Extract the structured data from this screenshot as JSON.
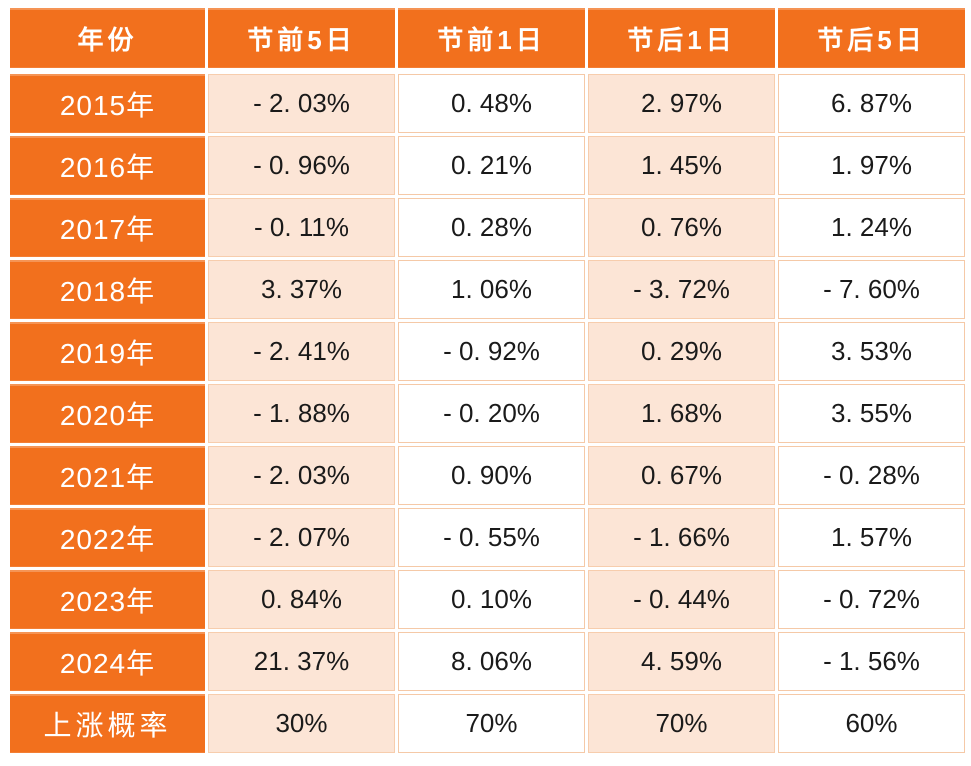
{
  "chart_data": {
    "type": "table",
    "columns": [
      "年份",
      "节前5日",
      "节前1日",
      "节后1日",
      "节后5日"
    ],
    "rows": [
      {
        "label": "2015年",
        "values": [
          "- 2. 03%",
          "0. 48%",
          "2. 97%",
          "6. 87%"
        ]
      },
      {
        "label": "2016年",
        "values": [
          "- 0. 96%",
          "0. 21%",
          "1. 45%",
          "1. 97%"
        ]
      },
      {
        "label": "2017年",
        "values": [
          "- 0. 11%",
          "0. 28%",
          "0. 76%",
          "1. 24%"
        ]
      },
      {
        "label": "2018年",
        "values": [
          "3. 37%",
          "1. 06%",
          "- 3. 72%",
          "- 7. 60%"
        ]
      },
      {
        "label": "2019年",
        "values": [
          "- 2. 41%",
          "- 0. 92%",
          "0. 29%",
          "3. 53%"
        ]
      },
      {
        "label": "2020年",
        "values": [
          "- 1. 88%",
          "- 0. 20%",
          "1. 68%",
          "3. 55%"
        ]
      },
      {
        "label": "2021年",
        "values": [
          "- 2. 03%",
          "0. 90%",
          "0. 67%",
          "- 0. 28%"
        ]
      },
      {
        "label": "2022年",
        "values": [
          "- 2. 07%",
          "- 0. 55%",
          "- 1. 66%",
          "1. 57%"
        ]
      },
      {
        "label": "2023年",
        "values": [
          "0. 84%",
          "0. 10%",
          "- 0. 44%",
          "- 0. 72%"
        ]
      },
      {
        "label": "2024年",
        "values": [
          "21. 37%",
          "8. 06%",
          "4. 59%",
          "- 1. 56%"
        ]
      },
      {
        "label": "上涨概率",
        "values": [
          "30%",
          "70%",
          "70%",
          "60%"
        ]
      }
    ],
    "colors": {
      "header_orange": "#F2701D",
      "shaded_column_peach": "#FCE5D6",
      "grid_border_peach": "#F5C9A7",
      "header_text": "#FFFFFF",
      "value_text": "#1A1A1A"
    },
    "layout": {
      "shaded_value_columns": [
        "节前5日",
        "节后1日"
      ],
      "legend_position": "none",
      "grid": true
    }
  }
}
